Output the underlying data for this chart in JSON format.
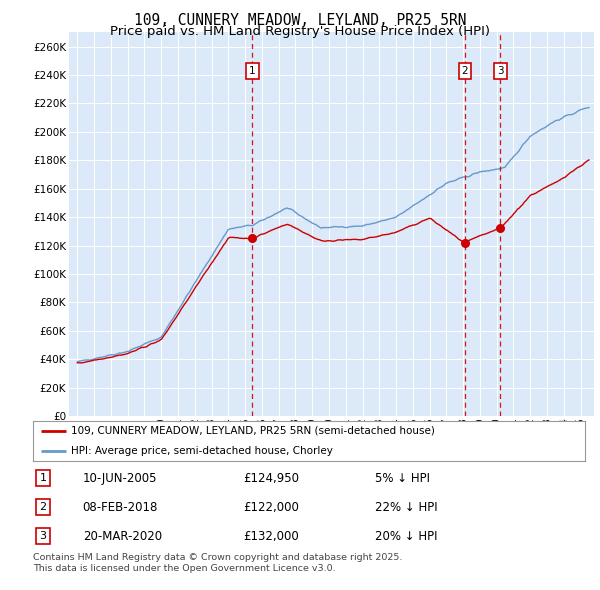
{
  "title": "109, CUNNERY MEADOW, LEYLAND, PR25 5RN",
  "subtitle": "Price paid vs. HM Land Registry's House Price Index (HPI)",
  "ylim": [
    0,
    270000
  ],
  "yticks": [
    0,
    20000,
    40000,
    60000,
    80000,
    100000,
    120000,
    140000,
    160000,
    180000,
    200000,
    220000,
    240000,
    260000
  ],
  "ytick_labels": [
    "£0",
    "£20K",
    "£40K",
    "£60K",
    "£80K",
    "£100K",
    "£120K",
    "£140K",
    "£160K",
    "£180K",
    "£200K",
    "£220K",
    "£240K",
    "£260K"
  ],
  "bg_color": "#dce9f8",
  "grid_color": "#ffffff",
  "red_line_color": "#cc0000",
  "blue_line_color": "#6699cc",
  "sale_marker_color": "#cc0000",
  "sale_vline_color": "#cc0000",
  "legend_label_red": "109, CUNNERY MEADOW, LEYLAND, PR25 5RN (semi-detached house)",
  "legend_label_blue": "HPI: Average price, semi-detached house, Chorley",
  "sales": [
    {
      "num": 1,
      "date": "10-JUN-2005",
      "price": 124950,
      "pct": "5%",
      "direction": "↓"
    },
    {
      "num": 2,
      "date": "08-FEB-2018",
      "price": 122000,
      "pct": "22%",
      "direction": "↓"
    },
    {
      "num": 3,
      "date": "20-MAR-2020",
      "price": 132000,
      "pct": "20%",
      "direction": "↓"
    }
  ],
  "footer": "Contains HM Land Registry data © Crown copyright and database right 2025.\nThis data is licensed under the Open Government Licence v3.0.",
  "sale_dates_decimal": [
    2005.44,
    2018.1,
    2020.22
  ],
  "title_fontsize": 10.5,
  "subtitle_fontsize": 9.5,
  "xlim_left": 1994.5,
  "xlim_right": 2025.8
}
